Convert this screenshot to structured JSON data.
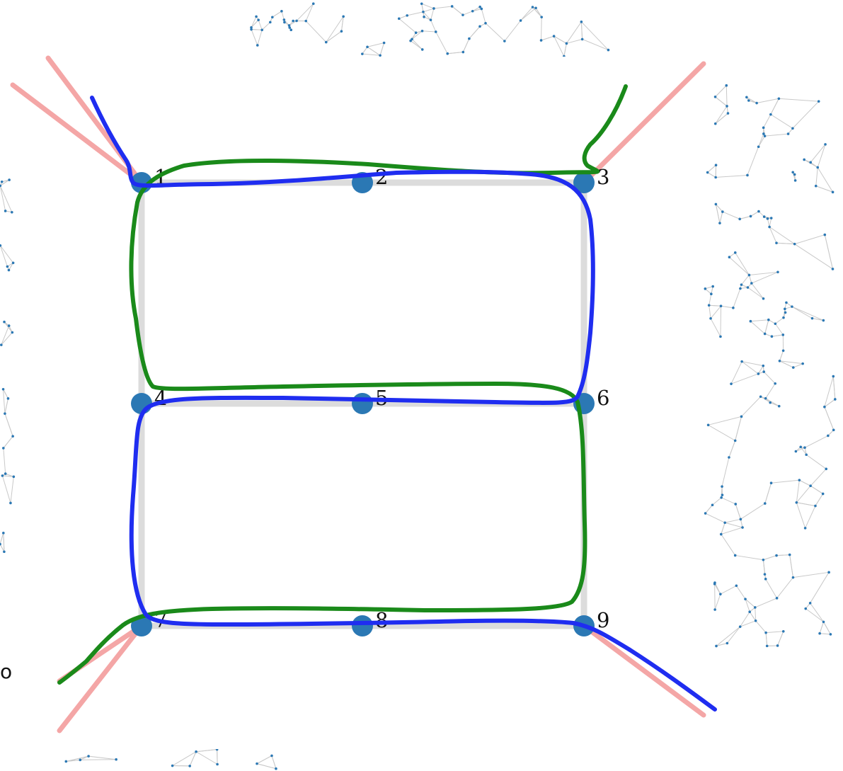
{
  "diagram": {
    "nodes": [
      {
        "id": 1,
        "label": "1"
      },
      {
        "id": 2,
        "label": "2"
      },
      {
        "id": 3,
        "label": "3"
      },
      {
        "id": 4,
        "label": "4"
      },
      {
        "id": 5,
        "label": "5"
      },
      {
        "id": 6,
        "label": "6"
      },
      {
        "id": 7,
        "label": "7"
      },
      {
        "id": 8,
        "label": "8"
      },
      {
        "id": 9,
        "label": "9"
      }
    ],
    "edges": [
      [
        1,
        2
      ],
      [
        2,
        3
      ],
      [
        4,
        5
      ],
      [
        5,
        6
      ],
      [
        7,
        8
      ],
      [
        8,
        9
      ],
      [
        1,
        4
      ],
      [
        4,
        7
      ],
      [
        3,
        6
      ],
      [
        6,
        9
      ]
    ],
    "external_edges_from": [
      1,
      3,
      7,
      9
    ],
    "annotations": [
      {
        "name": "blue-stroke",
        "color": "#1f2df0"
      },
      {
        "name": "green-stroke",
        "color": "#1a8a1a"
      }
    ],
    "stray_text": "o"
  },
  "colors": {
    "node": "#2b78b4",
    "grid_edge": "#dcdcdc",
    "external_edge": "#f4a6a6",
    "background_graph": "#c9c9c9",
    "background_dot": "#2b78b4"
  }
}
